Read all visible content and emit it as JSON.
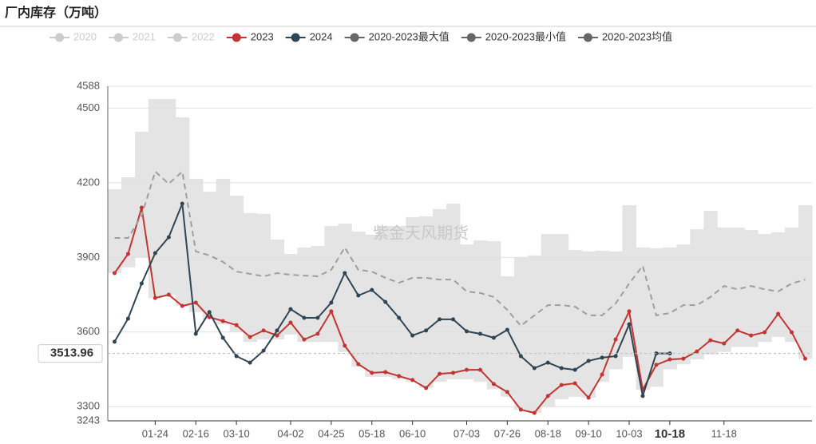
{
  "chart_data": {
    "type": "line",
    "title": "厂内库存（万吨）",
    "watermark": "紫金天风期货",
    "categories": [
      null,
      null,
      null,
      "01-24",
      null,
      null,
      "02-16",
      null,
      null,
      "03-10",
      null,
      null,
      null,
      "04-02",
      null,
      null,
      "04-25",
      null,
      null,
      "05-18",
      null,
      null,
      "06-10",
      null,
      null,
      null,
      "07-03",
      null,
      null,
      "07-26",
      null,
      null,
      "08-18",
      null,
      null,
      "09-10",
      null,
      null,
      "10-03",
      null,
      null,
      "10-18",
      null,
      null,
      null,
      "11-18",
      null,
      null,
      null,
      null,
      null,
      null
    ],
    "ylim": [
      3243,
      4588
    ],
    "yticks": [
      3243,
      3300,
      3600,
      3900,
      4200,
      4500,
      4588
    ],
    "grid": true,
    "axis_pointer": {
      "x": "10-18",
      "y": 3513.96
    },
    "series": [
      {
        "name": "2020",
        "color": "#cccccc",
        "visible": false
      },
      {
        "name": "2021",
        "color": "#cccccc",
        "visible": false
      },
      {
        "name": "2022",
        "color": "#cccccc",
        "visible": false
      },
      {
        "name": "2023",
        "color": "#c23531",
        "style": "line",
        "values": [
          3837,
          3914,
          4100,
          3737,
          3750,
          3705,
          3718,
          3660,
          3644,
          3628,
          3580,
          3606,
          3586,
          3638,
          3570,
          3593,
          3683,
          3545,
          3471,
          3436,
          3439,
          3423,
          3407,
          3375,
          3432,
          3436,
          3448,
          3448,
          3391,
          3359,
          3288,
          3275,
          3343,
          3387,
          3394,
          3336,
          3429,
          3570,
          3683,
          3368,
          3468,
          3490,
          3493,
          3522,
          3567,
          3554,
          3606,
          3586,
          3599,
          3673,
          3599,
          3493
        ]
      },
      {
        "name": "2024",
        "color": "#2f4554",
        "style": "line",
        "values": [
          3561,
          3654,
          3795,
          3917,
          3981,
          4116,
          3593,
          3680,
          3577,
          3503,
          3477,
          3525,
          3606,
          3692,
          3657,
          3657,
          3718,
          3837,
          3747,
          3769,
          3721,
          3657,
          3586,
          3606,
          3651,
          3651,
          3603,
          3593,
          3577,
          3609,
          3503,
          3455,
          3477,
          3455,
          3448,
          3484,
          3497,
          3503,
          3631,
          3343,
          3514,
          3513.96,
          null,
          null,
          null,
          null,
          null,
          null,
          null,
          null,
          null,
          null
        ]
      },
      {
        "name": "2020-2023最大值",
        "color": "#666666",
        "style": "band-top",
        "values": [
          4174,
          4222,
          4405,
          4537,
          4537,
          4463,
          4216,
          4164,
          4216,
          4148,
          4078,
          4075,
          3972,
          3914,
          3940,
          3946,
          4026,
          4036,
          4004,
          3991,
          4026,
          4026,
          4062,
          4065,
          4094,
          4116,
          3952,
          3968,
          3965,
          3824,
          3901,
          3908,
          3994,
          3994,
          3930,
          3924,
          3927,
          3924,
          4110,
          3940,
          3937,
          3940,
          3952,
          4013,
          4087,
          4020,
          4020,
          4010,
          3994,
          4001,
          4020,
          4110
        ]
      },
      {
        "name": "2020-2023最小值",
        "color": "#666666",
        "style": "band-bottom",
        "values": [
          3837,
          3860,
          3900,
          3737,
          3750,
          3705,
          3680,
          3650,
          3630,
          3600,
          3560,
          3570,
          3570,
          3590,
          3560,
          3560,
          3560,
          3520,
          3460,
          3420,
          3420,
          3410,
          3400,
          3375,
          3400,
          3410,
          3410,
          3400,
          3370,
          3340,
          3288,
          3275,
          3300,
          3330,
          3340,
          3336,
          3400,
          3450,
          3500,
          3368,
          3380,
          3450,
          3470,
          3490,
          3510,
          3520,
          3540,
          3540,
          3560,
          3580,
          3560,
          3493
        ]
      },
      {
        "name": "2020-2023均值",
        "color": "#666666",
        "style": "dashed",
        "values": [
          3978,
          3978,
          4068,
          4245,
          4196,
          4245,
          3924,
          3908,
          3882,
          3843,
          3834,
          3824,
          3837,
          3830,
          3827,
          3824,
          3850,
          3940,
          3850,
          3843,
          3818,
          3798,
          3818,
          3818,
          3811,
          3811,
          3763,
          3757,
          3741,
          3689,
          3625,
          3667,
          3708,
          3708,
          3702,
          3667,
          3667,
          3715,
          3795,
          3866,
          3667,
          3676,
          3708,
          3708,
          3741,
          3785,
          3772,
          3785,
          3772,
          3763,
          3795,
          3811
        ]
      }
    ]
  }
}
